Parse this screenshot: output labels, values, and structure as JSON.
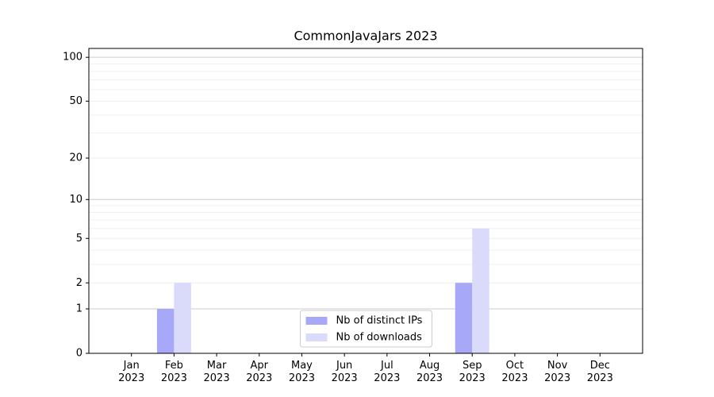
{
  "chart_data": {
    "type": "bar",
    "title": "CommonJavaJars 2023",
    "categories": [
      "Jan\n2023",
      "Feb\n2023",
      "Mar\n2023",
      "Apr\n2023",
      "May\n2023",
      "Jun\n2023",
      "Jul\n2023",
      "Aug\n2023",
      "Sep\n2023",
      "Oct\n2023",
      "Nov\n2023",
      "Dec\n2023"
    ],
    "series": [
      {
        "name": "Nb of distinct IPs",
        "color": "#a8a8f8",
        "values": [
          0,
          1,
          0,
          0,
          0,
          0,
          0,
          0,
          2,
          0,
          0,
          0
        ]
      },
      {
        "name": "Nb of downloads",
        "color": "#dadafa",
        "values": [
          0,
          2,
          0,
          0,
          0,
          0,
          0,
          0,
          6,
          0,
          0,
          0
        ]
      }
    ],
    "yscale": "log1p",
    "ylim": [
      0,
      115
    ],
    "yticks": [
      0,
      1,
      2,
      5,
      10,
      20,
      50,
      100
    ],
    "minor_yticks": [
      3,
      4,
      6,
      7,
      8,
      9,
      30,
      40,
      60,
      70,
      80,
      90
    ],
    "grid": true,
    "legend": "lower center"
  }
}
